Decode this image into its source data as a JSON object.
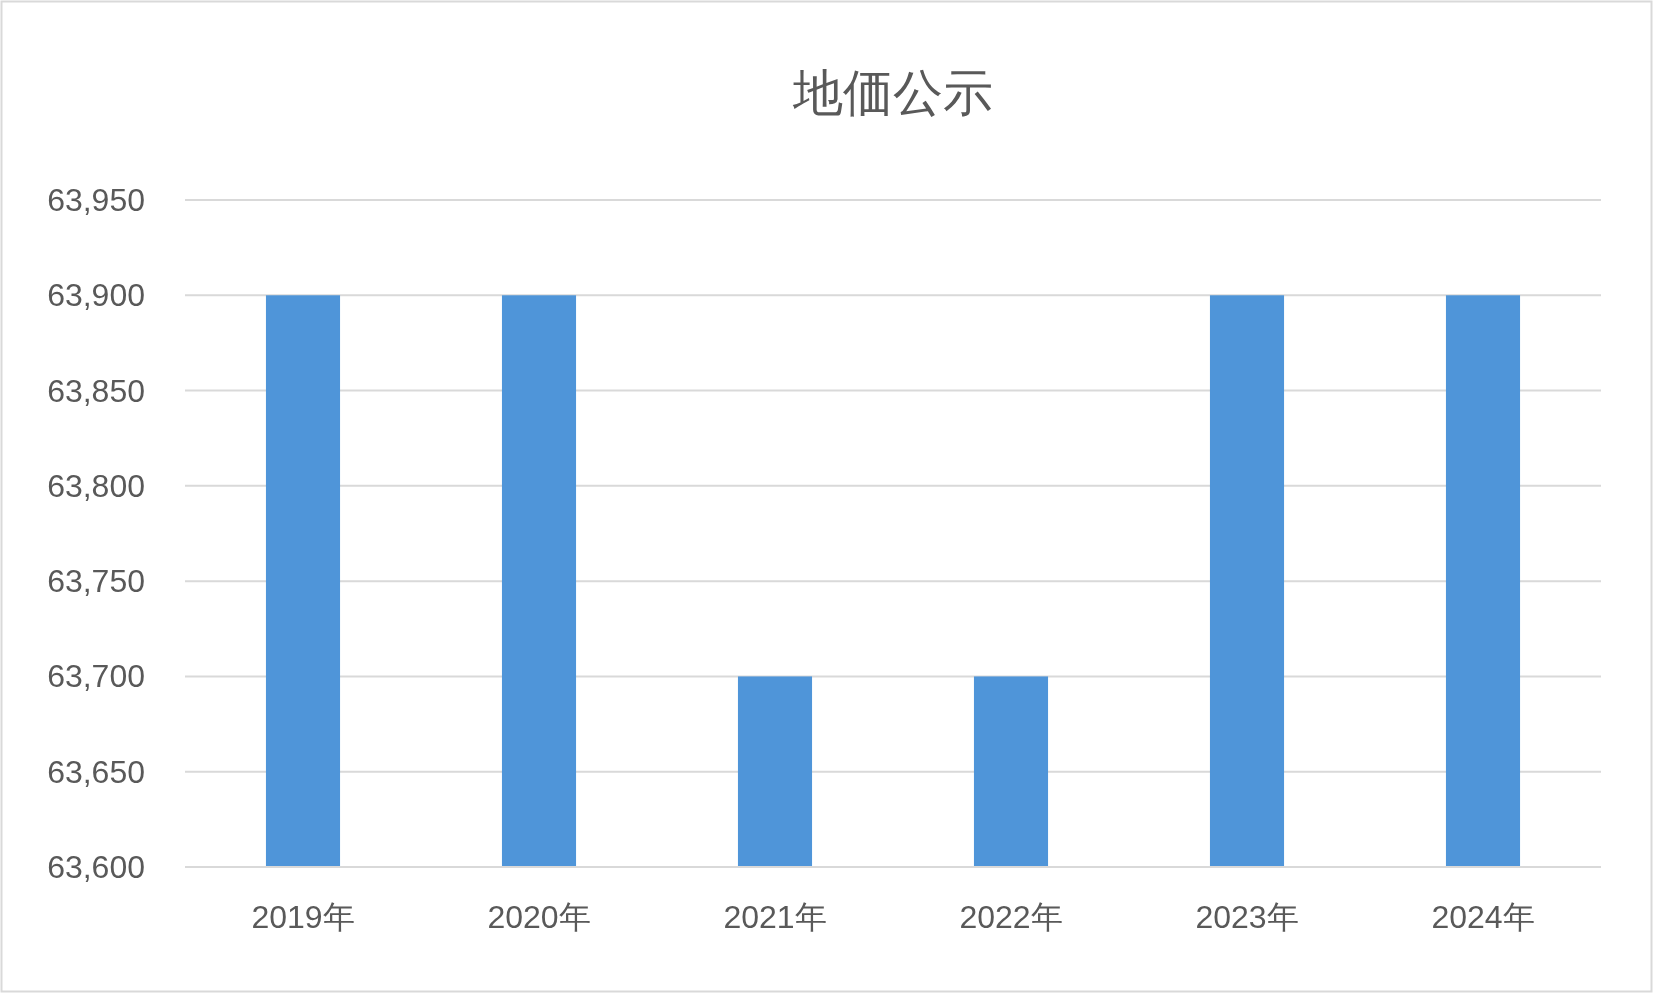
{
  "chart_data": {
    "type": "bar",
    "title": "地価公示",
    "categories": [
      "2019年",
      "2020年",
      "2021年",
      "2022年",
      "2023年",
      "2024年"
    ],
    "values": [
      63900,
      63900,
      63700,
      63700,
      63900,
      63900
    ],
    "color": "#4f95d9",
    "ylim": [
      63600,
      63950
    ],
    "yticks": [
      {
        "value": 63600,
        "label": "63,600"
      },
      {
        "value": 63650,
        "label": "63,650"
      },
      {
        "value": 63700,
        "label": "63,700"
      },
      {
        "value": 63750,
        "label": "63,750"
      },
      {
        "value": 63800,
        "label": "63,800"
      },
      {
        "value": 63850,
        "label": "63,850"
      },
      {
        "value": 63900,
        "label": "63,900"
      },
      {
        "value": 63950,
        "label": "63,950"
      }
    ],
    "grid": "y"
  }
}
